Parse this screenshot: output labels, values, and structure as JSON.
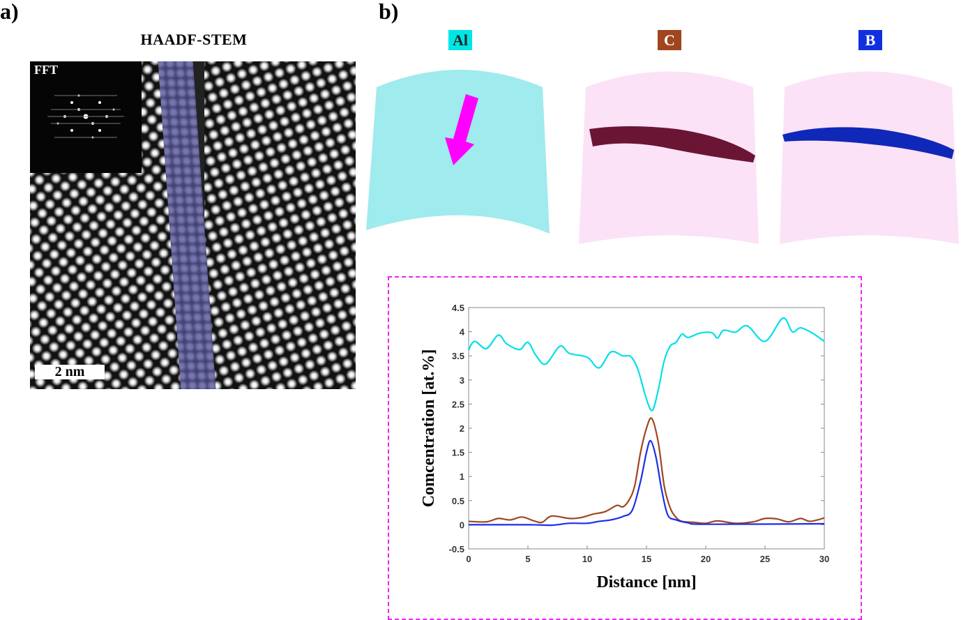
{
  "panel_a": {
    "label": "a)",
    "title": "HAADF-STEM",
    "inset_label": "FFT",
    "scale_bar": "2 nm"
  },
  "panel_b": {
    "label": "b)",
    "elements": [
      {
        "name": "Al",
        "color": "#00e5e5"
      },
      {
        "name": "C",
        "color": "#a0461e"
      },
      {
        "name": "B",
        "color": "#1030e0"
      }
    ]
  },
  "chart_data": {
    "type": "line",
    "title": "",
    "xlabel": "Distance [nm]",
    "ylabel": "Comcentration [at.%]",
    "xlim": [
      0,
      30
    ],
    "ylim": [
      -0.5,
      4.5
    ],
    "xticks": [
      "0",
      "5",
      "10",
      "15",
      "20",
      "25",
      "30"
    ],
    "yticks": [
      "-0.5",
      "0",
      "0.5",
      "1",
      "1.5",
      "2",
      "2.5",
      "3",
      "3.5",
      "4",
      "4.5"
    ],
    "grid": false,
    "series": [
      {
        "name": "Al",
        "color": "#00e0e8",
        "x": [
          0,
          0.5,
          1.5,
          2.5,
          3.2,
          4.3,
          5,
          5.7,
          6.5,
          7.7,
          8.5,
          10,
          11,
          12,
          13,
          13.7,
          14.3,
          15,
          15.5,
          16,
          16.5,
          17,
          17.5,
          18,
          18.5,
          19.5,
          20.5,
          21,
          21.5,
          22.5,
          23.5,
          25,
          26.5,
          27.3,
          28,
          29,
          30
        ],
        "y": [
          3.62,
          3.8,
          3.65,
          3.93,
          3.75,
          3.63,
          3.78,
          3.5,
          3.33,
          3.7,
          3.55,
          3.47,
          3.25,
          3.58,
          3.5,
          3.48,
          3.2,
          2.6,
          2.37,
          2.8,
          3.4,
          3.7,
          3.78,
          3.95,
          3.88,
          3.97,
          3.98,
          3.87,
          4.03,
          3.99,
          4.12,
          3.8,
          4.28,
          4.0,
          4.08,
          3.97,
          3.8
        ]
      },
      {
        "name": "C",
        "color": "#a0461e",
        "x": [
          0,
          1.5,
          2.5,
          3.5,
          4.5,
          5.5,
          6.2,
          7,
          8.5,
          9.5,
          10.5,
          11.5,
          12.5,
          13,
          13.5,
          14,
          14.5,
          15,
          15.45,
          16,
          16.5,
          17,
          17.5,
          18,
          19,
          20,
          21,
          22.5,
          24,
          25,
          26,
          27,
          28,
          28.8,
          30
        ],
        "y": [
          0.07,
          0.06,
          0.13,
          0.1,
          0.16,
          0.08,
          0.05,
          0.18,
          0.13,
          0.15,
          0.22,
          0.27,
          0.4,
          0.37,
          0.5,
          0.8,
          1.5,
          2.0,
          2.2,
          1.7,
          0.8,
          0.35,
          0.15,
          0.07,
          0.05,
          0.03,
          0.08,
          0.03,
          0.06,
          0.13,
          0.12,
          0.06,
          0.13,
          0.07,
          0.14
        ]
      },
      {
        "name": "B",
        "color": "#1a2ee8",
        "x": [
          0,
          5,
          7,
          8.5,
          10,
          11,
          12,
          13,
          13.8,
          14.5,
          15,
          15.35,
          15.8,
          16.3,
          16.8,
          17.5,
          18.5,
          20,
          30
        ],
        "y": [
          0.0,
          0.0,
          -0.01,
          0.03,
          0.03,
          0.07,
          0.1,
          0.17,
          0.3,
          0.9,
          1.5,
          1.74,
          1.4,
          0.7,
          0.2,
          0.1,
          0.04,
          0.01,
          0.02
        ]
      }
    ]
  }
}
